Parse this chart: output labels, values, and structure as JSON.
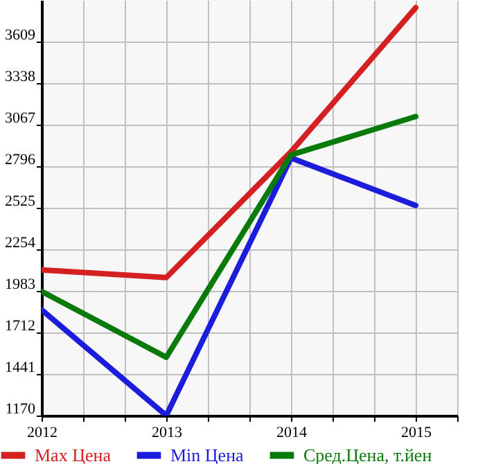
{
  "chart_data": {
    "type": "line",
    "x": [
      2012,
      2013,
      2014,
      2015
    ],
    "xlim": [
      2012,
      2015.333
    ],
    "xticks": [
      2012,
      {
        "value": 2012.333,
        "label": null
      },
      {
        "value": 2012.667,
        "label": null
      },
      2013,
      {
        "value": 2013.333,
        "label": null
      },
      {
        "value": 2013.667,
        "label": null
      },
      2014,
      {
        "value": 2014.333,
        "label": null
      },
      {
        "value": 2014.667,
        "label": null
      },
      2015,
      {
        "value": 2015.333,
        "label": null
      }
    ],
    "ylim": [
      1170,
      3880
    ],
    "yticks": [
      1170,
      1441,
      1712,
      1983,
      2254,
      2525,
      2796,
      3067,
      3338,
      3609
    ],
    "grid": true,
    "legend": "bottom",
    "marker": "none",
    "line_style": "solid",
    "series": [
      {
        "name": "Max Цена",
        "color": "#d42020",
        "values": [
          2120,
          2070,
          2890,
          3830
        ]
      },
      {
        "name": "Min Цена",
        "color": "#1c1cdc",
        "values": [
          1860,
          1170,
          2850,
          2540
        ]
      },
      {
        "name": "Сред.Цена, т.йен",
        "color": "#0a7a0a",
        "values": [
          1980,
          1550,
          2870,
          3120
        ]
      }
    ]
  }
}
